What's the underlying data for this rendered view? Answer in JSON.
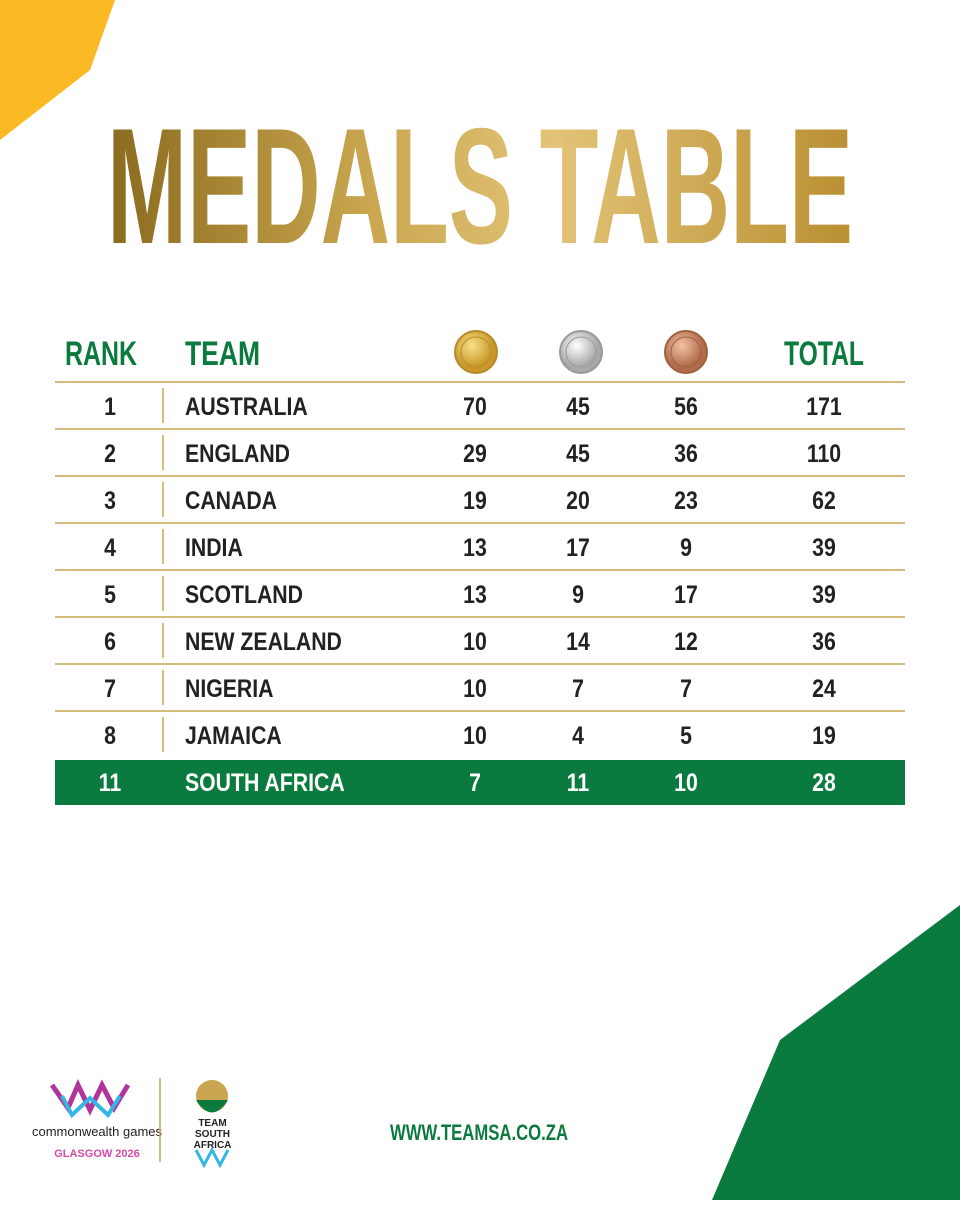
{
  "header": {
    "title": "MEDALS TABLE"
  },
  "table": {
    "columns": {
      "rank": "RANK",
      "team": "TEAM",
      "total": "TOTAL"
    },
    "rows": [
      [
        1,
        "AUSTRALIA",
        70,
        45,
        56,
        171
      ],
      [
        2,
        "ENGLAND",
        29,
        45,
        36,
        110
      ],
      [
        3,
        "CANADA",
        19,
        20,
        23,
        62
      ],
      [
        4,
        "INDIA",
        13,
        17,
        9,
        39
      ],
      [
        5,
        "SCOTLAND",
        13,
        9,
        17,
        39
      ],
      [
        6,
        "NEW ZEALAND",
        10,
        14,
        12,
        36
      ],
      [
        7,
        "NIGERIA",
        10,
        7,
        7,
        24
      ],
      [
        8,
        "JAMAICA",
        10,
        4,
        5,
        19
      ],
      [
        11,
        "SOUTH AFRICA",
        7,
        11,
        10,
        28
      ]
    ]
  },
  "footer": {
    "cwg_name": "commonwealth games",
    "cwg_edition": "GLASGOW 2026",
    "team_logo": "TEAM SOUTH AFRICA",
    "website": "WWW.TEAMSA.CO.ZA"
  }
}
